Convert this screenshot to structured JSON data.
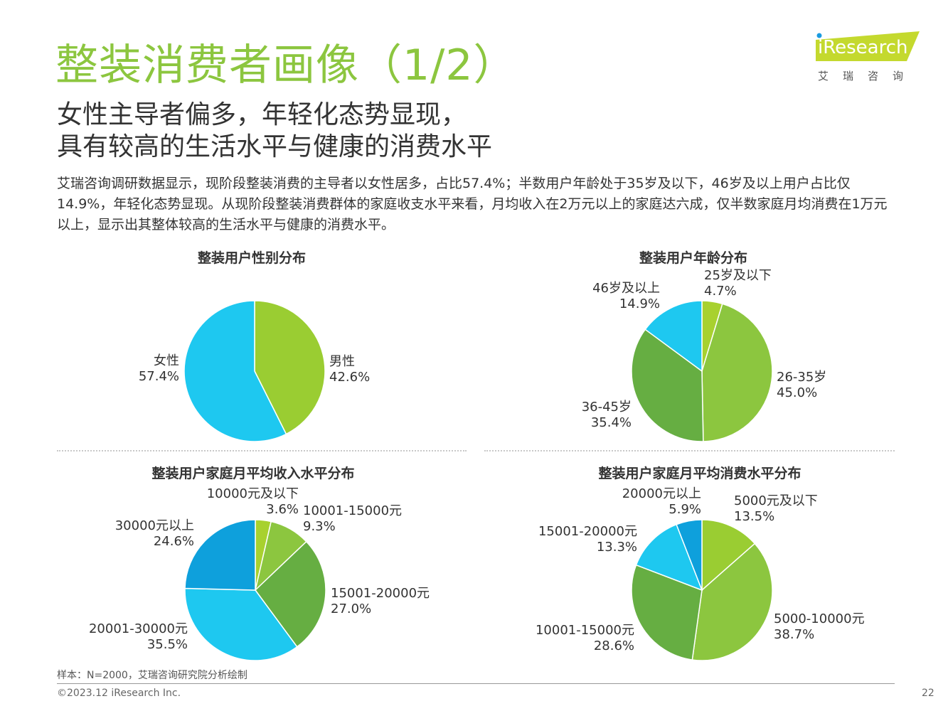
{
  "page": {
    "title": "整装消费者画像（1/2）",
    "headline_line1": "女性主导者偏多，年轻化态势显现，",
    "headline_line2": "具有较高的生活水平与健康的消费水平",
    "summary": "艾瑞咨询调研数据显示，现阶段整装消费的主导者以女性居多，占比57.4%；半数用户年龄处于35岁及以下，46岁及以上用户占比仅14.9%，年轻化态势显现。从现阶段整装消费群体的家庭收支水平来看，月均收入在2万元以上的家庭达六成，仅半数家庭月均消费在1万元以上，显示出其整体较高的生活水平与健康的消费水平。",
    "source": "样本：N=2000，艾瑞咨询研究院分析绘制",
    "copyright": "©2023.12 iResearch Inc.",
    "page_number": "22"
  },
  "logo": {
    "text": "iResearch",
    "cn": "艾瑞咨询",
    "color": "#c4d92e"
  },
  "chart_data": [
    {
      "type": "pie",
      "title": "整装用户性别分布",
      "categories": [
        "男性",
        "女性"
      ],
      "values": [
        42.6,
        57.4
      ],
      "value_labels": [
        "42.6%",
        "57.4%"
      ],
      "colors": [
        "#9acd32",
        "#1ec8f0"
      ]
    },
    {
      "type": "pie",
      "title": "整装用户年龄分布",
      "categories": [
        "25岁及以下",
        "26-35岁",
        "36-45岁",
        "46岁及以上"
      ],
      "values": [
        4.7,
        45.0,
        35.4,
        14.9
      ],
      "value_labels": [
        "4.7%",
        "45.0%",
        "35.4%",
        "14.9%"
      ],
      "colors": [
        "#a8d12f",
        "#8cc63f",
        "#66ae42",
        "#1ec8f0"
      ]
    },
    {
      "type": "pie",
      "title": "整装用户家庭月平均收入水平分布",
      "categories": [
        "10000元及以下",
        "10001-15000元",
        "15001-20000元",
        "20001-30000元",
        "30000元以上"
      ],
      "values": [
        3.6,
        9.3,
        27.0,
        35.5,
        24.6
      ],
      "value_labels": [
        "3.6%",
        "9.3%",
        "27.0%",
        "35.5%",
        "24.6%"
      ],
      "colors": [
        "#a8d12f",
        "#8cc63f",
        "#66ae42",
        "#1ec8f0",
        "#0ea0dc"
      ]
    },
    {
      "type": "pie",
      "title": "整装用户家庭月平均消费水平分布",
      "categories": [
        "5000元及以下",
        "5000-10000元",
        "10001-15000元",
        "15001-20000元",
        "20000元以上"
      ],
      "values": [
        13.5,
        38.7,
        28.6,
        13.3,
        5.9
      ],
      "value_labels": [
        "13.5%",
        "38.7%",
        "28.6%",
        "13.3%",
        "5.9%"
      ],
      "colors": [
        "#9acd32",
        "#8cc63f",
        "#66ae42",
        "#1ec8f0",
        "#0ea0dc"
      ]
    }
  ]
}
